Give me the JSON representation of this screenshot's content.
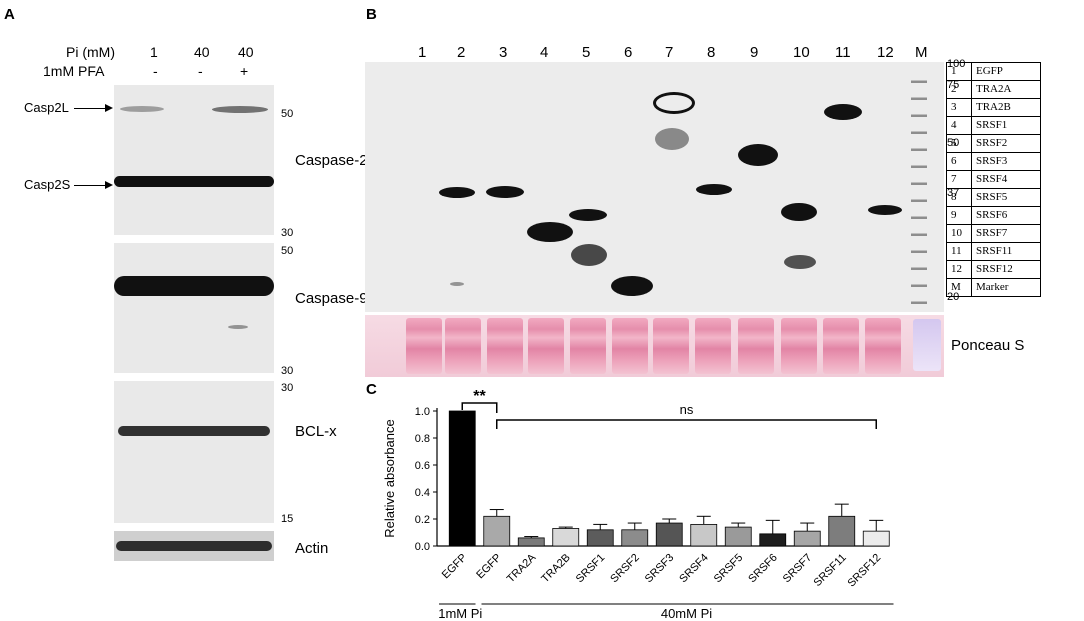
{
  "panelA": {
    "letter": "A",
    "pi_label": "Pi (mM)",
    "pi_values": [
      "1",
      "40",
      "40"
    ],
    "pfa_label": "1mM PFA",
    "pfa_values": [
      "-",
      "-",
      "+"
    ],
    "casp2L": "Casp2L",
    "casp2S": "Casp2S",
    "blots": {
      "caspase2": {
        "label": "Caspase-2",
        "mw_top": "50",
        "mw_bottom": "30"
      },
      "caspase9": {
        "label": "Caspase-9",
        "mw_top": "50",
        "mw_bottom": "30"
      },
      "bclx": {
        "label": "BCL-x",
        "mw_top": "30",
        "mw_bottom": "15"
      },
      "actin": {
        "label": "Actin"
      }
    }
  },
  "panelB": {
    "letter": "B",
    "lanes": [
      "1",
      "2",
      "3",
      "4",
      "5",
      "6",
      "7",
      "8",
      "9",
      "10",
      "11",
      "12",
      "M"
    ],
    "mw_markers": [
      "100",
      "75",
      "50",
      "37",
      "20"
    ],
    "ponceau_label": "Ponceau S",
    "legend": [
      {
        "num": "1",
        "name": "EGFP"
      },
      {
        "num": "2",
        "name": "TRA2A"
      },
      {
        "num": "3",
        "name": "TRA2B"
      },
      {
        "num": "4",
        "name": "SRSF1"
      },
      {
        "num": "5",
        "name": "SRSF2"
      },
      {
        "num": "6",
        "name": "SRSF3"
      },
      {
        "num": "7",
        "name": "SRSF4"
      },
      {
        "num": "8",
        "name": "SRSF5"
      },
      {
        "num": "9",
        "name": "SRSF6"
      },
      {
        "num": "10",
        "name": "SRSF7"
      },
      {
        "num": "11",
        "name": "SRSF11"
      },
      {
        "num": "12",
        "name": "SRSF12"
      },
      {
        "num": "M",
        "name": "Marker"
      }
    ]
  },
  "panelC": {
    "letter": "C",
    "sig_label": "**",
    "ns_label": "ns",
    "group1_label": "1mM Pi",
    "group2_label": "40mM Pi"
  },
  "chart_data": {
    "type": "bar",
    "ylabel": "Relative absorbance",
    "ylim": [
      0,
      1.0
    ],
    "yticks": [
      "0.0",
      "0.2",
      "0.4",
      "0.6",
      "0.8",
      "1.0"
    ],
    "categories": [
      "EGFP",
      "EGFP",
      "TRA2A",
      "TRA2B",
      "SRSF1",
      "SRSF2",
      "SRSF3",
      "SRSF4",
      "SRSF5",
      "SRSF6",
      "SRSF7",
      "SRSF11",
      "SRSF12"
    ],
    "values": [
      1.0,
      0.22,
      0.06,
      0.13,
      0.12,
      0.12,
      0.17,
      0.16,
      0.14,
      0.09,
      0.11,
      0.22,
      0.11
    ],
    "errors": [
      0.0,
      0.05,
      0.01,
      0.01,
      0.04,
      0.05,
      0.03,
      0.06,
      0.03,
      0.1,
      0.06,
      0.09,
      0.08
    ],
    "colors": [
      "#000000",
      "#a9a9a9",
      "#7a7a7a",
      "#d9d9d9",
      "#5c5c5c",
      "#8c8c8c",
      "#555555",
      "#c8c8c8",
      "#9a9a9a",
      "#1e1e1e",
      "#a6a6a6",
      "#7d7d7d",
      "#ececec"
    ]
  }
}
